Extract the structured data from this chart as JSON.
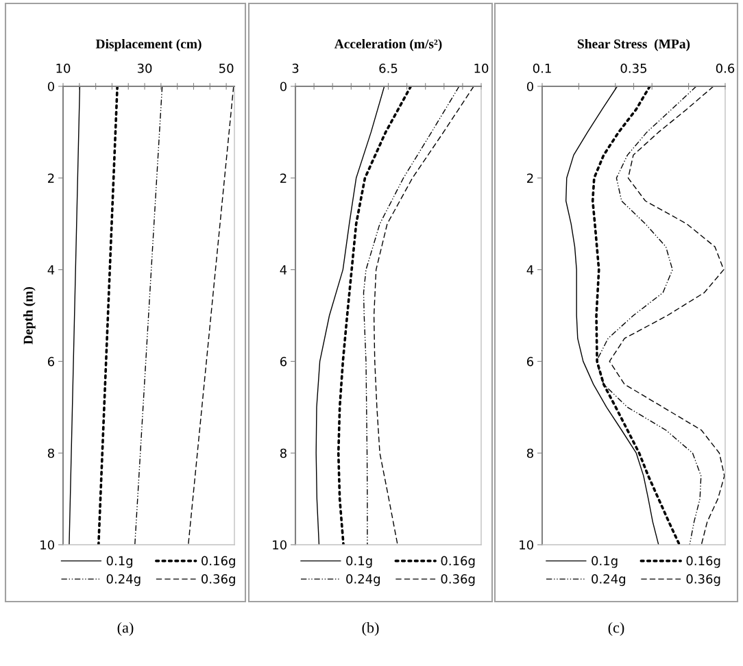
{
  "chart_data": [
    {
      "type": "line",
      "orientation": "horizontal",
      "title": "Displacement (cm)",
      "ylabel": "Depth (m)",
      "annotations": [
        "(a)"
      ],
      "legend": "bottom",
      "xlim": [
        10,
        52
      ],
      "xticks": [
        10,
        {
          "value": 14,
          "label": null
        },
        {
          "value": 18,
          "label": null
        },
        {
          "value": 22,
          "label": null
        },
        {
          "value": 26,
          "label": null
        },
        30,
        {
          "value": 34,
          "label": null
        },
        {
          "value": 38,
          "label": null
        },
        {
          "value": 42,
          "label": null
        },
        {
          "value": 46,
          "label": null
        },
        50
      ],
      "ylim": [
        10,
        0
      ],
      "yticks": [
        0,
        2,
        4,
        6,
        8,
        10
      ],
      "series": [
        {
          "name": "0.1g",
          "color": "#000000",
          "line_style": "solid",
          "x": [
            0,
            10
          ],
          "values": [
            14.1,
            11.5
          ]
        },
        {
          "name": "0.16g",
          "color": "#000000",
          "line_style": "dotted",
          "x": [
            0,
            10
          ],
          "values": [
            23.3,
            18.7
          ]
        },
        {
          "name": "0.24g",
          "color": "#000000",
          "line_style": "dashdot",
          "x": [
            0,
            10
          ],
          "values": [
            34.3,
            27.6
          ]
        },
        {
          "name": "0.36g",
          "color": "#000000",
          "line_style": "dashed",
          "x": [
            0,
            10
          ],
          "values": [
            51.8,
            40.7
          ]
        }
      ]
    },
    {
      "type": "line",
      "orientation": "horizontal",
      "title": "Acceleration (m/s²)",
      "annotations": [
        "(b)"
      ],
      "legend": "bottom",
      "xlim": [
        3,
        10
      ],
      "xticks": [
        3,
        {
          "value": 3.7,
          "label": null
        },
        {
          "value": 4.4,
          "label": null
        },
        {
          "value": 5.1,
          "label": null
        },
        {
          "value": 5.8,
          "label": null
        },
        6.5,
        {
          "value": 7.2,
          "label": null
        },
        {
          "value": 7.9,
          "label": null
        },
        {
          "value": 8.6,
          "label": null
        },
        {
          "value": 9.3,
          "label": null
        },
        10
      ],
      "ylim": [
        10,
        0
      ],
      "yticks": [
        0,
        2,
        4,
        6,
        8,
        10
      ],
      "series": [
        {
          "name": "0.1g",
          "color": "#000000",
          "line_style": "solid",
          "x": [
            0,
            1,
            2,
            3,
            4,
            5,
            6,
            7,
            8,
            9,
            10
          ],
          "values": [
            6.35,
            5.85,
            5.29,
            5.03,
            4.79,
            4.28,
            3.92,
            3.8,
            3.78,
            3.81,
            3.89
          ]
        },
        {
          "name": "0.16g",
          "color": "#000000",
          "line_style": "dotted",
          "x": [
            0,
            1,
            2,
            3,
            4,
            5,
            6,
            7,
            8,
            9,
            10
          ],
          "values": [
            7.35,
            6.4,
            5.62,
            5.29,
            5.12,
            4.95,
            4.79,
            4.67,
            4.62,
            4.67,
            4.81
          ]
        },
        {
          "name": "0.24g",
          "color": "#000000",
          "line_style": "dashdot",
          "x": [
            0,
            1,
            2,
            3,
            4,
            4.5,
            5,
            6,
            7,
            8,
            9,
            10
          ],
          "values": [
            9.17,
            8.13,
            7.07,
            6.18,
            5.66,
            5.57,
            5.59,
            5.66,
            5.68,
            5.7,
            5.71,
            5.71
          ]
        },
        {
          "name": "0.36g",
          "color": "#000000",
          "line_style": "dashed",
          "x": [
            0,
            1,
            2,
            3,
            4,
            5,
            6,
            7,
            8,
            9,
            10
          ],
          "values": [
            9.72,
            8.58,
            7.41,
            6.46,
            6.04,
            5.96,
            5.99,
            6.07,
            6.18,
            6.52,
            6.85
          ]
        }
      ]
    },
    {
      "type": "line",
      "orientation": "horizontal",
      "title": "Shear Stress  (MPa)",
      "annotations": [
        "(c)"
      ],
      "legend": "bottom",
      "xlim": [
        0.1,
        0.6
      ],
      "xticks": [
        0.1,
        {
          "value": 0.2,
          "label": null
        },
        {
          "value": 0.3,
          "label": null
        },
        0.35,
        {
          "value": 0.4,
          "label": null
        },
        {
          "value": 0.5,
          "label": null
        },
        0.6
      ],
      "ylim": [
        10,
        0
      ],
      "yticks": [
        0,
        2,
        4,
        6,
        8,
        10
      ],
      "series": [
        {
          "name": "0.1g",
          "color": "#000000",
          "line_style": "solid",
          "x": [
            0,
            0.5,
            1,
            1.5,
            2,
            2.5,
            3,
            3.5,
            4,
            5,
            5.5,
            6,
            6.5,
            7,
            7.5,
            8,
            8.5,
            9,
            9.5,
            10
          ],
          "values": [
            0.305,
            0.264,
            0.224,
            0.186,
            0.167,
            0.165,
            0.179,
            0.189,
            0.194,
            0.194,
            0.197,
            0.212,
            0.24,
            0.276,
            0.317,
            0.357,
            0.377,
            0.39,
            0.402,
            0.418
          ]
        },
        {
          "name": "0.16g",
          "color": "#000000",
          "line_style": "dotted",
          "x": [
            0,
            0.5,
            1,
            1.5,
            2,
            2.5,
            3,
            4,
            5,
            6,
            6.5,
            7,
            7.5,
            8,
            8.5,
            9,
            9.5,
            10
          ],
          "values": [
            0.394,
            0.357,
            0.309,
            0.268,
            0.242,
            0.238,
            0.244,
            0.255,
            0.248,
            0.25,
            0.268,
            0.301,
            0.333,
            0.365,
            0.39,
            0.418,
            0.446,
            0.475
          ]
        },
        {
          "name": "0.24g",
          "color": "#000000",
          "line_style": "dashdot",
          "x": [
            0,
            0.5,
            1,
            1.5,
            2,
            2.5,
            3,
            3.5,
            4,
            4.5,
            5,
            5.5,
            6,
            6.5,
            7,
            7.5,
            8,
            8.5,
            9,
            9.5,
            10
          ],
          "values": [
            0.521,
            0.454,
            0.386,
            0.333,
            0.303,
            0.317,
            0.382,
            0.438,
            0.456,
            0.43,
            0.349,
            0.28,
            0.248,
            0.268,
            0.333,
            0.438,
            0.511,
            0.534,
            0.531,
            0.515,
            0.503
          ]
        },
        {
          "name": "0.36g",
          "color": "#000000",
          "line_style": "dashed",
          "x": [
            0,
            0.5,
            1,
            1.5,
            2,
            2.5,
            3,
            3.5,
            4,
            4.5,
            5,
            5.5,
            6,
            6.5,
            7,
            7.5,
            8,
            8.5,
            9,
            9.5,
            10
          ],
          "values": [
            0.568,
            0.495,
            0.418,
            0.349,
            0.335,
            0.382,
            0.495,
            0.572,
            0.596,
            0.543,
            0.442,
            0.325,
            0.284,
            0.325,
            0.43,
            0.535,
            0.584,
            0.598,
            0.58,
            0.551,
            0.535
          ]
        }
      ]
    }
  ]
}
